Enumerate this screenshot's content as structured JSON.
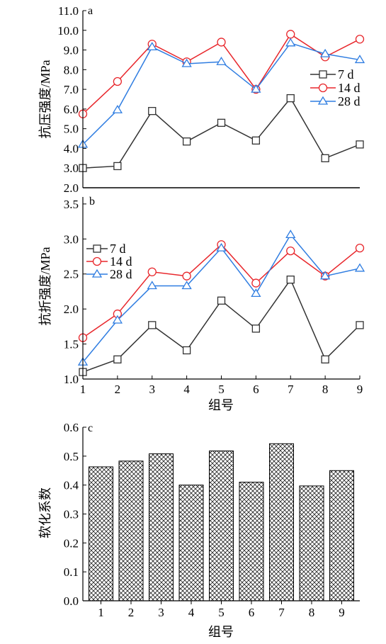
{
  "chart_data": [
    {
      "panel": "a",
      "type": "line",
      "ylabel": "抗压强度/MPa",
      "ylim": [
        2.0,
        11.0
      ],
      "yticks": [
        "2.0",
        "3.0",
        "4.0",
        "5.0",
        "6.0",
        "7.0",
        "8.0",
        "9.0",
        "10.0",
        "11.0"
      ],
      "x": [
        1,
        2,
        3,
        4,
        5,
        6,
        7,
        8,
        9
      ],
      "legend_position": "right",
      "series": [
        {
          "name": "7 d",
          "color": "#333333",
          "marker": "square",
          "values": [
            3.0,
            3.1,
            5.9,
            4.35,
            5.3,
            4.4,
            6.55,
            3.5,
            4.2
          ]
        },
        {
          "name": "14 d",
          "color": "#e8262b",
          "marker": "circle",
          "values": [
            5.75,
            7.4,
            9.3,
            8.4,
            9.4,
            7.0,
            9.8,
            8.65,
            9.55
          ]
        },
        {
          "name": "28 d",
          "color": "#2f7de1",
          "marker": "triangle",
          "values": [
            4.2,
            5.95,
            9.15,
            8.3,
            8.4,
            7.0,
            9.35,
            8.8,
            8.5
          ]
        }
      ]
    },
    {
      "panel": "b",
      "type": "line",
      "ylabel": "抗折强度/MPa",
      "xlabel": "组号",
      "ylim": [
        1.0,
        3.6
      ],
      "yticks": [
        "1.0",
        "1.5",
        "2.0",
        "2.5",
        "3.0",
        "3.5"
      ],
      "x": [
        1,
        2,
        3,
        4,
        5,
        6,
        7,
        8,
        9
      ],
      "xticks": [
        "1",
        "2",
        "3",
        "4",
        "5",
        "6",
        "7",
        "8",
        "9"
      ],
      "legend_position": "top-left",
      "series": [
        {
          "name": "7 d",
          "color": "#333333",
          "marker": "square",
          "values": [
            1.1,
            1.28,
            1.77,
            1.41,
            2.12,
            1.72,
            2.42,
            1.28,
            1.77
          ]
        },
        {
          "name": "14 d",
          "color": "#e8262b",
          "marker": "circle",
          "values": [
            1.59,
            1.93,
            2.53,
            2.47,
            2.92,
            2.37,
            2.83,
            2.47,
            2.87
          ]
        },
        {
          "name": "28 d",
          "color": "#2f7de1",
          "marker": "triangle",
          "values": [
            1.24,
            1.84,
            2.33,
            2.33,
            2.87,
            2.22,
            3.06,
            2.47,
            2.58
          ]
        }
      ]
    },
    {
      "panel": "c",
      "type": "bar",
      "ylabel": "软化系数",
      "xlabel": "组号",
      "ylim": [
        0.0,
        0.6
      ],
      "yticks": [
        "0.0",
        "0.1",
        "0.2",
        "0.3",
        "0.4",
        "0.5",
        "0.6"
      ],
      "categories": [
        "1",
        "2",
        "3",
        "4",
        "5",
        "6",
        "7",
        "8",
        "9"
      ],
      "values": [
        0.463,
        0.483,
        0.508,
        0.4,
        0.518,
        0.41,
        0.543,
        0.397,
        0.45
      ],
      "fill": "crosshatch"
    }
  ]
}
